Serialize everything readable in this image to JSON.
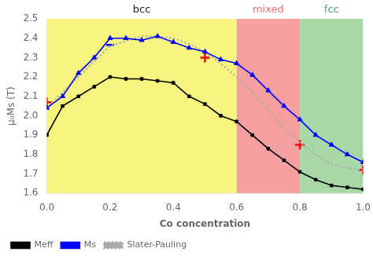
{
  "chart_data": {
    "type": "line",
    "xlabel": "Co concentration",
    "ylabel": "μ₀Ms (T)",
    "xlim": [
      0.0,
      1.0
    ],
    "xticks": [
      {
        "value": 0.0,
        "label": "0.0"
      },
      0.2,
      0.4,
      0.6,
      0.8,
      {
        "value": 1.0,
        "label": "1.0"
      }
    ],
    "ylim": [
      1.6,
      2.5
    ],
    "yticks": [
      1.6,
      1.7,
      1.8,
      1.9,
      {
        "value": 2.0,
        "label": "2.0"
      },
      2.1,
      2.2,
      2.3,
      2.4,
      2.5
    ],
    "grid": false,
    "legend": "lower left",
    "regions": [
      {
        "label": "bcc",
        "range": [
          0.0,
          0.6
        ],
        "color": "#F5F580",
        "text_color": "#222222"
      },
      {
        "label": "mixed",
        "range": [
          0.6,
          0.8
        ],
        "color": "#F5A0A0",
        "text_color": "#E87070"
      },
      {
        "label": "fcc",
        "range": [
          0.8,
          1.0
        ],
        "color": "#A8D8A8",
        "text_color": "#4A9A8A"
      }
    ],
    "series": [
      {
        "name": "Meff",
        "color": "black",
        "marker": "square",
        "line_style": "solid",
        "x": [
          0.0,
          0.05,
          0.1,
          0.15,
          0.2,
          0.25,
          0.3,
          0.35,
          0.4,
          0.45,
          0.5,
          0.55,
          0.6,
          0.65,
          0.7,
          0.75,
          0.8,
          0.85,
          0.9,
          0.95,
          1.0
        ],
        "values": [
          1.9,
          2.05,
          2.1,
          2.15,
          2.2,
          2.19,
          2.19,
          2.18,
          2.17,
          2.1,
          2.06,
          2.0,
          1.97,
          1.9,
          1.83,
          1.77,
          1.71,
          1.67,
          1.64,
          1.63,
          1.62
        ]
      },
      {
        "name": "Ms",
        "color": "blue",
        "marker": "triangle",
        "line_style": "solid",
        "x": [
          0.0,
          0.05,
          0.1,
          0.15,
          0.2,
          0.25,
          0.3,
          0.35,
          0.4,
          0.45,
          0.5,
          0.55,
          0.6,
          0.65,
          0.7,
          0.75,
          0.8,
          0.85,
          0.9,
          0.95,
          1.0
        ],
        "values": [
          2.04,
          2.1,
          2.22,
          2.3,
          2.4,
          2.4,
          2.39,
          2.41,
          2.38,
          2.35,
          2.33,
          2.29,
          2.27,
          2.21,
          2.13,
          2.05,
          1.98,
          1.9,
          1.85,
          1.8,
          1.76
        ]
      },
      {
        "name": "Slater-Pauling",
        "color": "#AAAAAA",
        "marker": "none",
        "line_style": "dotted",
        "x": [
          0.0,
          0.1,
          0.2,
          0.3,
          0.35,
          0.4,
          0.45,
          0.5,
          0.55,
          0.6,
          0.65,
          0.7,
          0.75,
          0.8,
          0.85,
          0.9,
          0.95,
          1.0
        ],
        "values": [
          2.04,
          2.2,
          2.36,
          2.41,
          2.41,
          2.4,
          2.37,
          2.33,
          2.27,
          2.2,
          2.12,
          2.03,
          1.94,
          1.86,
          1.8,
          1.75,
          1.73,
          1.72
        ]
      },
      {
        "color": "red",
        "marker": "plus",
        "line_style": "none",
        "x": [
          0.0,
          0.5,
          0.8,
          1.0
        ],
        "values": [
          2.07,
          2.3,
          1.85,
          1.72
        ]
      },
      {
        "color": "blue",
        "marker": "minus",
        "line_style": "none",
        "x": [
          0.2
        ],
        "values": [
          2.365
        ]
      }
    ]
  }
}
